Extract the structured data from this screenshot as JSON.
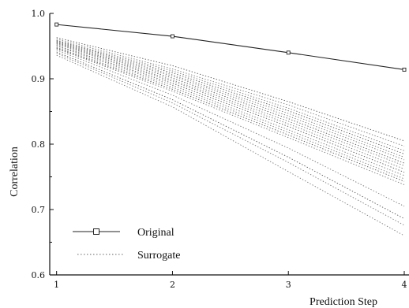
{
  "chart_data": {
    "type": "line",
    "title": "",
    "xlabel": "Prediction Step",
    "ylabel": "Correlation",
    "x": [
      1,
      2,
      3,
      4
    ],
    "x_ticks": [
      "1",
      "2",
      "3",
      "4"
    ],
    "y_ticks": [
      "0.6",
      "0.7",
      "0.8",
      "0.9",
      "1.0"
    ],
    "xlim": [
      0.9,
      4.0
    ],
    "ylim": [
      0.6,
      1.0
    ],
    "grid": false,
    "legend_position": "bottom-left",
    "legend": {
      "original_label": "Original",
      "surrogate_label": "Surrogate"
    },
    "series": [
      {
        "name": "Original",
        "style": "solid-square-markers",
        "values": [
          0.983,
          0.965,
          0.94,
          0.914
        ]
      },
      {
        "name": "Surrogate",
        "style": "dotted",
        "lines": [
          [
            0.963,
            0.92,
            0.865,
            0.805
          ],
          [
            0.961,
            0.915,
            0.86,
            0.797
          ],
          [
            0.959,
            0.912,
            0.855,
            0.79
          ],
          [
            0.958,
            0.909,
            0.851,
            0.785
          ],
          [
            0.957,
            0.906,
            0.847,
            0.78
          ],
          [
            0.956,
            0.904,
            0.843,
            0.776
          ],
          [
            0.955,
            0.901,
            0.839,
            0.771
          ],
          [
            0.954,
            0.898,
            0.835,
            0.767
          ],
          [
            0.953,
            0.896,
            0.831,
            0.762
          ],
          [
            0.951,
            0.893,
            0.827,
            0.757
          ],
          [
            0.95,
            0.89,
            0.822,
            0.752
          ],
          [
            0.948,
            0.887,
            0.818,
            0.747
          ],
          [
            0.947,
            0.884,
            0.814,
            0.743
          ],
          [
            0.946,
            0.881,
            0.81,
            0.738
          ],
          [
            0.944,
            0.875,
            0.794,
            0.705
          ],
          [
            0.941,
            0.868,
            0.78,
            0.686
          ],
          [
            0.939,
            0.863,
            0.772,
            0.676
          ],
          [
            0.936,
            0.857,
            0.758,
            0.66
          ]
        ]
      }
    ]
  }
}
